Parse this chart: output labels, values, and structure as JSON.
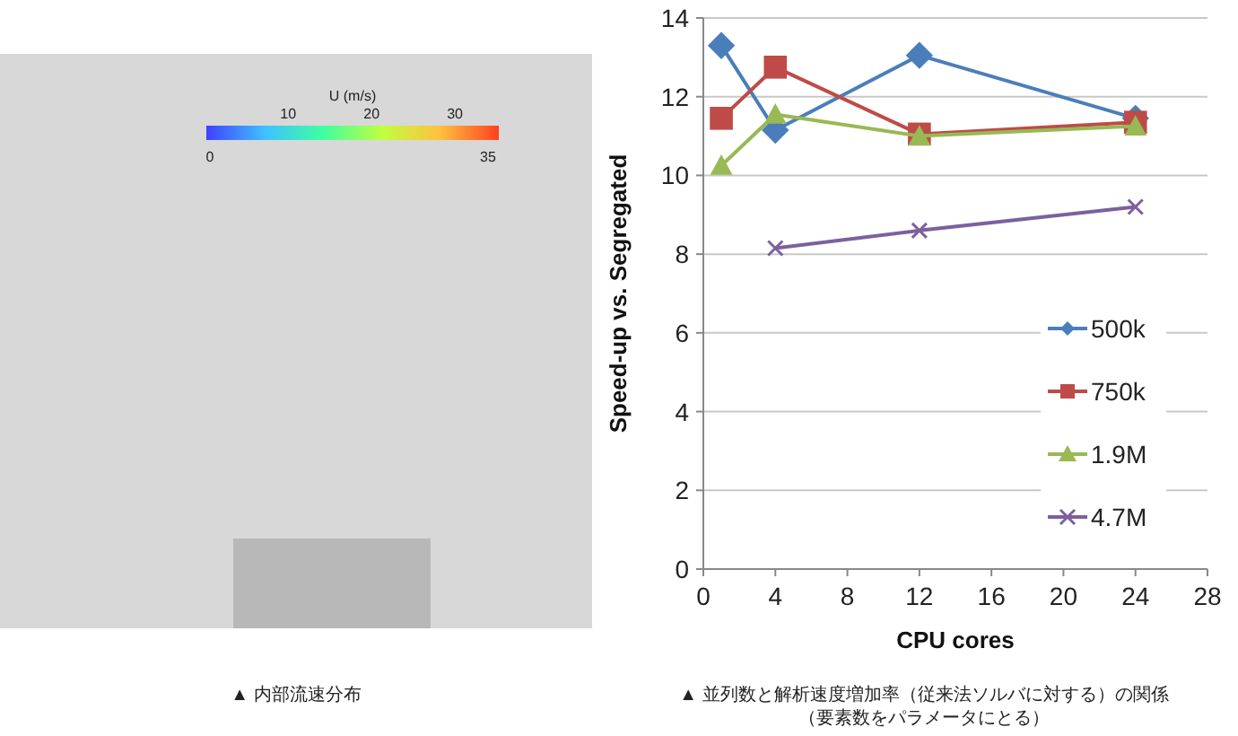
{
  "chart_data": [
    {
      "type": "other",
      "clabel": "U (m/s)",
      "annotations": [
        "0",
        "10",
        "20",
        "30",
        "35",
        "▲ 内部流速分布"
      ]
    },
    {
      "type": "line",
      "xlabel": "CPU cores",
      "ylabel": "Speed-up vs. Segregated",
      "xlim": [
        0,
        28
      ],
      "xticks": [
        0,
        4,
        8,
        12,
        16,
        20,
        24,
        28
      ],
      "ylim": [
        0,
        14
      ],
      "yticks": [
        0,
        2,
        4,
        6,
        8,
        10,
        12,
        14
      ],
      "grid": "y",
      "legend": "bottom right",
      "annotations": [
        "▲ 並列数と解析速度増加率（従来法ソルバに対する）の関係",
        "（要素数をパラメータにとる）"
      ],
      "series": [
        {
          "name": "500k",
          "color": "#4a7ebb",
          "marker": "diamond",
          "x": [
            1,
            4,
            12,
            24
          ],
          "values": [
            13.3,
            11.15,
            13.05,
            11.45
          ]
        },
        {
          "name": "750k",
          "color": "#be4b48",
          "marker": "square",
          "x": [
            1,
            4,
            12,
            24
          ],
          "values": [
            11.45,
            12.75,
            11.05,
            11.35
          ]
        },
        {
          "name": "1.9M",
          "color": "#98b954",
          "marker": "triangle",
          "x": [
            1,
            4,
            12,
            24
          ],
          "values": [
            10.25,
            11.55,
            11.0,
            11.25
          ]
        },
        {
          "name": "4.7M",
          "color": "#7d60a0",
          "marker": "cross",
          "x": [
            4,
            12,
            24
          ],
          "values": [
            8.15,
            8.6,
            9.2
          ]
        }
      ]
    }
  ]
}
